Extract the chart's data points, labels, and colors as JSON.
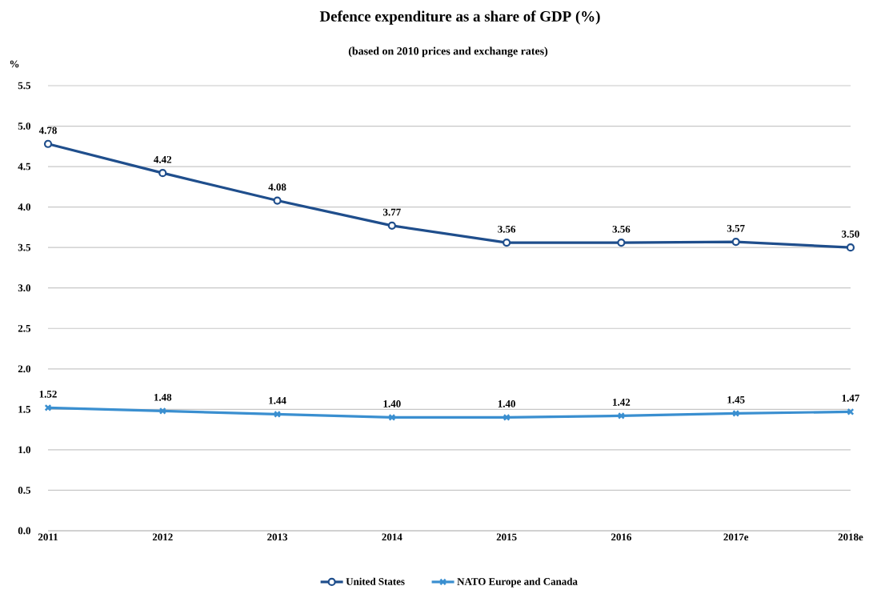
{
  "chart_data": {
    "type": "line",
    "title": "Defence expenditure as a share of GDP (%)",
    "subtitle": "(based on 2010 prices and exchange rates)",
    "ylabel": "%",
    "categories": [
      "2011",
      "2012",
      "2013",
      "2014",
      "2015",
      "2016",
      "2017e",
      "2018e"
    ],
    "ylim": [
      0,
      5.5
    ],
    "yticks": [
      {
        "value": 0,
        "label": "0.0"
      },
      0.5,
      {
        "value": 1,
        "label": "1.0"
      },
      1.5,
      {
        "value": 2,
        "label": "2.0"
      },
      2.5,
      {
        "value": 3,
        "label": "3.0"
      },
      3.5,
      {
        "value": 4,
        "label": "4.0"
      },
      4.5,
      {
        "value": 5,
        "label": "5.0"
      },
      5.5
    ],
    "grid": "y",
    "legend": "bottom",
    "line_style": "solid",
    "series": [
      {
        "name": "United States",
        "color": "#1f4e8c",
        "marker": "circle",
        "values": [
          4.78,
          4.42,
          4.08,
          3.77,
          3.56,
          3.56,
          3.57,
          3.5
        ],
        "value_labels": [
          "4.78",
          "4.42",
          "4.08",
          "3.77",
          "3.56",
          "3.56",
          "3.57",
          "3.50"
        ]
      },
      {
        "name": "NATO Europe and Canada",
        "color": "#3a8fd0",
        "marker": "cross",
        "values": [
          1.52,
          1.48,
          1.44,
          1.4,
          1.4,
          1.42,
          1.45,
          1.47
        ],
        "value_labels": [
          "1.52",
          "1.48",
          "1.44",
          "1.40",
          "1.40",
          "1.42",
          "1.45",
          "1.47"
        ]
      }
    ]
  }
}
